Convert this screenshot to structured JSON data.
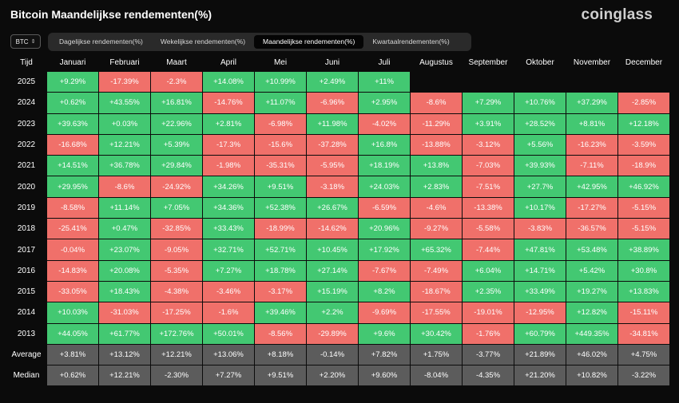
{
  "title": "Bitcoin Maandelijkse rendementen(%)",
  "logo": "coinglass",
  "coin_select": {
    "value": "BTC",
    "icon": "chevron-updown-icon"
  },
  "tabs": [
    {
      "label": "Dagelijkse rendementen(%)",
      "active": false
    },
    {
      "label": "Wekelijkse rendementen(%)",
      "active": false
    },
    {
      "label": "Maandelijkse rendementen(%)",
      "active": true
    },
    {
      "label": "Kwartaalrendementen(%)",
      "active": false
    }
  ],
  "colors": {
    "positive": "#43c872",
    "negative": "#f0706a",
    "summary": "#5c5c5c"
  },
  "table": {
    "corner": "Tijd",
    "months": [
      "Januari",
      "Februari",
      "Maart",
      "April",
      "Mei",
      "Juni",
      "Juli",
      "Augustus",
      "September",
      "Oktober",
      "November",
      "December"
    ],
    "rows": [
      {
        "label": "2025",
        "values": [
          "+9.29%",
          "-17.39%",
          "-2.3%",
          "+14.08%",
          "+10.99%",
          "+2.49%",
          "+11%",
          "",
          "",
          "",
          "",
          ""
        ]
      },
      {
        "label": "2024",
        "values": [
          "+0.62%",
          "+43.55%",
          "+16.81%",
          "-14.76%",
          "+11.07%",
          "-6.96%",
          "+2.95%",
          "-8.6%",
          "+7.29%",
          "+10.76%",
          "+37.29%",
          "-2.85%"
        ]
      },
      {
        "label": "2023",
        "values": [
          "+39.63%",
          "+0.03%",
          "+22.96%",
          "+2.81%",
          "-6.98%",
          "+11.98%",
          "-4.02%",
          "-11.29%",
          "+3.91%",
          "+28.52%",
          "+8.81%",
          "+12.18%"
        ]
      },
      {
        "label": "2022",
        "values": [
          "-16.68%",
          "+12.21%",
          "+5.39%",
          "-17.3%",
          "-15.6%",
          "-37.28%",
          "+16.8%",
          "-13.88%",
          "-3.12%",
          "+5.56%",
          "-16.23%",
          "-3.59%"
        ]
      },
      {
        "label": "2021",
        "values": [
          "+14.51%",
          "+36.78%",
          "+29.84%",
          "-1.98%",
          "-35.31%",
          "-5.95%",
          "+18.19%",
          "+13.8%",
          "-7.03%",
          "+39.93%",
          "-7.11%",
          "-18.9%"
        ]
      },
      {
        "label": "2020",
        "values": [
          "+29.95%",
          "-8.6%",
          "-24.92%",
          "+34.26%",
          "+9.51%",
          "-3.18%",
          "+24.03%",
          "+2.83%",
          "-7.51%",
          "+27.7%",
          "+42.95%",
          "+46.92%"
        ]
      },
      {
        "label": "2019",
        "values": [
          "-8.58%",
          "+11.14%",
          "+7.05%",
          "+34.36%",
          "+52.38%",
          "+26.67%",
          "-6.59%",
          "-4.6%",
          "-13.38%",
          "+10.17%",
          "-17.27%",
          "-5.15%"
        ]
      },
      {
        "label": "2018",
        "values": [
          "-25.41%",
          "+0.47%",
          "-32.85%",
          "+33.43%",
          "-18.99%",
          "-14.62%",
          "+20.96%",
          "-9.27%",
          "-5.58%",
          "-3.83%",
          "-36.57%",
          "-5.15%"
        ]
      },
      {
        "label": "2017",
        "values": [
          "-0.04%",
          "+23.07%",
          "-9.05%",
          "+32.71%",
          "+52.71%",
          "+10.45%",
          "+17.92%",
          "+65.32%",
          "-7.44%",
          "+47.81%",
          "+53.48%",
          "+38.89%"
        ]
      },
      {
        "label": "2016",
        "values": [
          "-14.83%",
          "+20.08%",
          "-5.35%",
          "+7.27%",
          "+18.78%",
          "+27.14%",
          "-7.67%",
          "-7.49%",
          "+6.04%",
          "+14.71%",
          "+5.42%",
          "+30.8%"
        ]
      },
      {
        "label": "2015",
        "values": [
          "-33.05%",
          "+18.43%",
          "-4.38%",
          "-3.46%",
          "-3.17%",
          "+15.19%",
          "+8.2%",
          "-18.67%",
          "+2.35%",
          "+33.49%",
          "+19.27%",
          "+13.83%"
        ]
      },
      {
        "label": "2014",
        "values": [
          "+10.03%",
          "-31.03%",
          "-17.25%",
          "-1.6%",
          "+39.46%",
          "+2.2%",
          "-9.69%",
          "-17.55%",
          "-19.01%",
          "-12.95%",
          "+12.82%",
          "-15.11%"
        ]
      },
      {
        "label": "2013",
        "values": [
          "+44.05%",
          "+61.77%",
          "+172.76%",
          "+50.01%",
          "-8.56%",
          "-29.89%",
          "+9.6%",
          "+30.42%",
          "-1.76%",
          "+60.79%",
          "+449.35%",
          "-34.81%"
        ]
      }
    ],
    "summary_rows": [
      {
        "label": "Average",
        "values": [
          "+3.81%",
          "+13.12%",
          "+12.21%",
          "+13.06%",
          "+8.18%",
          "-0.14%",
          "+7.82%",
          "+1.75%",
          "-3.77%",
          "+21.89%",
          "+46.02%",
          "+4.75%"
        ]
      },
      {
        "label": "Median",
        "values": [
          "+0.62%",
          "+12.21%",
          "-2.30%",
          "+7.27%",
          "+9.51%",
          "+2.20%",
          "+9.60%",
          "-8.04%",
          "-4.35%",
          "+21.20%",
          "+10.82%",
          "-3.22%"
        ]
      }
    ]
  }
}
